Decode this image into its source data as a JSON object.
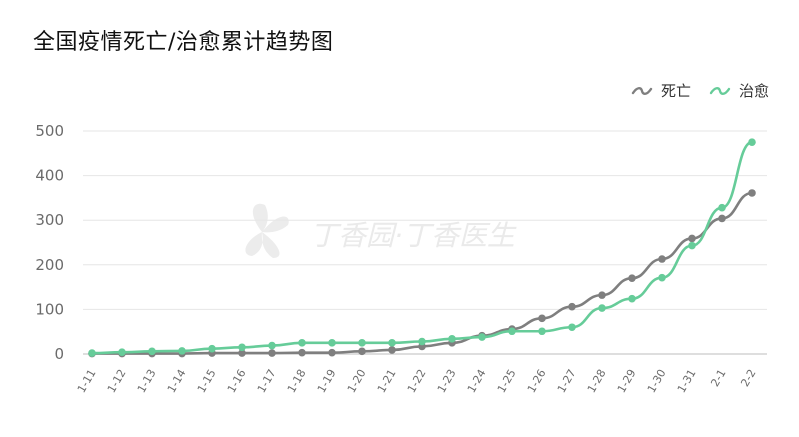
{
  "title": "全国疫情死亡/治愈累计趋势图",
  "legend": [
    {
      "label": "死亡",
      "color": "#7f7f7f"
    },
    {
      "label": "治愈",
      "color": "#66cc99"
    }
  ],
  "watermark": "丁香园·丁香医生",
  "chart_data": {
    "type": "line",
    "title": "全国疫情死亡/治愈累计趋势图",
    "categories": [
      "1-11",
      "1-12",
      "1-13",
      "1-14",
      "1-15",
      "1-16",
      "1-17",
      "1-18",
      "1-19",
      "1-20",
      "1-21",
      "1-22",
      "1-23",
      "1-24",
      "1-25",
      "1-26",
      "1-27",
      "1-28",
      "1-29",
      "1-30",
      "1-31",
      "2-1",
      "2-2"
    ],
    "series": [
      {
        "name": "死亡",
        "color": "#7f7f7f",
        "values": [
          1,
          1,
          1,
          1,
          2,
          2,
          2,
          3,
          3,
          6,
          9,
          17,
          25,
          41,
          56,
          80,
          106,
          132,
          170,
          213,
          259,
          304,
          361
        ]
      },
      {
        "name": "治愈",
        "color": "#66cc99",
        "values": [
          2,
          4,
          6,
          7,
          12,
          15,
          19,
          25,
          25,
          25,
          25,
          28,
          34,
          38,
          51,
          51,
          60,
          103,
          124,
          171,
          243,
          328,
          475
        ]
      }
    ],
    "xlabel": "",
    "ylabel": "",
    "ylim": [
      0,
      500
    ],
    "yticks": [
      0,
      100,
      200,
      300,
      400,
      500
    ],
    "grid": true,
    "legend_position": "top-right"
  }
}
